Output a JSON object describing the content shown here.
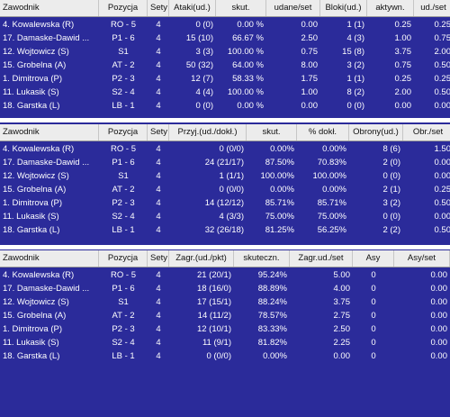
{
  "table1": {
    "headers": [
      "Zawodnik",
      "Pozycja",
      "Sety",
      "Ataki(ud.)",
      "skut.",
      "udane/set",
      "Bloki(ud.)",
      "aktywn.",
      "ud./set"
    ],
    "rows": [
      [
        "4. Kowalewska (R)",
        "RO - 5",
        "4",
        "0 (0)",
        "0.00 %",
        "0.00",
        "1 (1)",
        "0.25",
        "0.25"
      ],
      [
        "17. Damaske-Dawid ...",
        "P1 - 6",
        "4",
        "15 (10)",
        "66.67 %",
        "2.50",
        "4 (3)",
        "1.00",
        "0.75"
      ],
      [
        "12. Wojtowicz (S)",
        "S1",
        "4",
        "3 (3)",
        "100.00 %",
        "0.75",
        "15 (8)",
        "3.75",
        "2.00"
      ],
      [
        "15. Grobelna (A)",
        "AT - 2",
        "4",
        "50 (32)",
        "64.00 %",
        "8.00",
        "3 (2)",
        "0.75",
        "0.50"
      ],
      [
        "1. Dimitrova (P)",
        "P2 - 3",
        "4",
        "12 (7)",
        "58.33 %",
        "1.75",
        "1 (1)",
        "0.25",
        "0.25"
      ],
      [
        "11. Lukasik (S)",
        "S2 - 4",
        "4",
        "4 (4)",
        "100.00 %",
        "1.00",
        "8 (2)",
        "2.00",
        "0.50"
      ],
      [
        "18. Garstka (L)",
        "LB - 1",
        "4",
        "0 (0)",
        "0.00 %",
        "0.00",
        "0 (0)",
        "0.00",
        "0.00"
      ]
    ]
  },
  "table2": {
    "headers": [
      "Zawodnik",
      "Pozycja",
      "Sety",
      "Przyj.(ud./dokł.)",
      "skut.",
      "% dokł.",
      "Obrony(ud.)",
      "Obr./set"
    ],
    "rows": [
      [
        "4. Kowalewska (R)",
        "RO - 5",
        "4",
        "0 (0/0)",
        "0.00%",
        "0.00%",
        "8 (6)",
        "1.50"
      ],
      [
        "17. Damaske-Dawid ...",
        "P1 - 6",
        "4",
        "24 (21/17)",
        "87.50%",
        "70.83%",
        "2 (0)",
        "0.00"
      ],
      [
        "12. Wojtowicz (S)",
        "S1",
        "4",
        "1 (1/1)",
        "100.00%",
        "100.00%",
        "0 (0)",
        "0.00"
      ],
      [
        "15. Grobelna (A)",
        "AT - 2",
        "4",
        "0 (0/0)",
        "0.00%",
        "0.00%",
        "2 (1)",
        "0.25"
      ],
      [
        "1. Dimitrova (P)",
        "P2 - 3",
        "4",
        "14 (12/12)",
        "85.71%",
        "85.71%",
        "3 (2)",
        "0.50"
      ],
      [
        "11. Lukasik (S)",
        "S2 - 4",
        "4",
        "4 (3/3)",
        "75.00%",
        "75.00%",
        "0 (0)",
        "0.00"
      ],
      [
        "18. Garstka (L)",
        "LB - 1",
        "4",
        "32 (26/18)",
        "81.25%",
        "56.25%",
        "2 (2)",
        "0.50"
      ]
    ]
  },
  "table3": {
    "headers": [
      "Zawodnik",
      "Pozycja",
      "Sety",
      "Zagr.(ud./pkt)",
      "skuteczn.",
      "Zagr.ud./set",
      "Asy",
      "Asy/set"
    ],
    "rows": [
      [
        "4. Kowalewska (R)",
        "RO - 5",
        "4",
        "21 (20/1)",
        "95.24%",
        "5.00",
        "0",
        "0.00"
      ],
      [
        "17. Damaske-Dawid ...",
        "P1 - 6",
        "4",
        "18 (16/0)",
        "88.89%",
        "4.00",
        "0",
        "0.00"
      ],
      [
        "12. Wojtowicz (S)",
        "S1",
        "4",
        "17 (15/1)",
        "88.24%",
        "3.75",
        "0",
        "0.00"
      ],
      [
        "15. Grobelna (A)",
        "AT - 2",
        "4",
        "14 (11/2)",
        "78.57%",
        "2.75",
        "0",
        "0.00"
      ],
      [
        "1. Dimitrova (P)",
        "P2 - 3",
        "4",
        "12 (10/1)",
        "83.33%",
        "2.50",
        "0",
        "0.00"
      ],
      [
        "11. Lukasik (S)",
        "S2 - 4",
        "4",
        "11 (9/1)",
        "81.82%",
        "2.25",
        "0",
        "0.00"
      ],
      [
        "18. Garstka (L)",
        "LB - 1",
        "4",
        "0 (0/0)",
        "0.00%",
        "0.00",
        "0",
        "0.00"
      ]
    ]
  },
  "colors": {
    "background": "#2b2b9a",
    "header": "#ececec",
    "text": "#ffffff"
  }
}
